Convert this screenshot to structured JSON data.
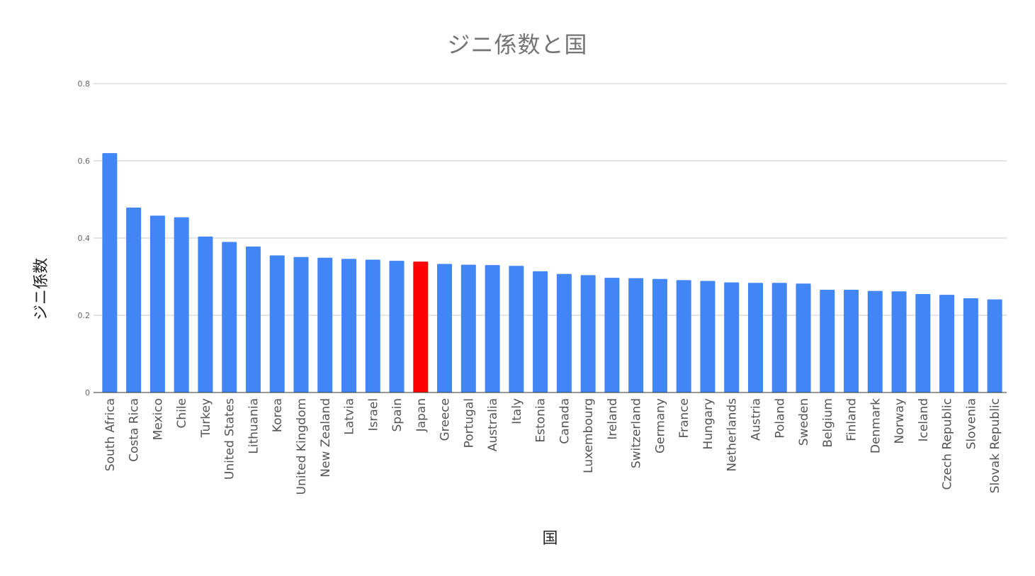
{
  "chart_data": {
    "type": "bar",
    "title": "ジニ係数と国",
    "xlabel": "国",
    "ylabel": "ジニ係数",
    "ylim": [
      0,
      0.8
    ],
    "y_ticks": [
      0,
      0.2,
      0.4,
      0.6,
      0.8
    ],
    "y_tick_labels": [
      "0",
      "0.2",
      "0.4",
      "0.6",
      "0.8"
    ],
    "grid": true,
    "legend": "none",
    "bar_color": "#4285f4",
    "highlight_color": "#ff0000",
    "highlight_category": "Japan",
    "categories": [
      "South Africa",
      "Costa Rica",
      "Mexico",
      "Chile",
      "Turkey",
      "United States",
      "Lithuania",
      "Korea",
      "United Kingdom",
      "New Zealand",
      "Latvia",
      "Israel",
      "Spain",
      "Japan",
      "Greece",
      "Portugal",
      "Australia",
      "Italy",
      "Estonia",
      "Canada",
      "Luxembourg",
      "Ireland",
      "Switzerland",
      "Germany",
      "France",
      "Hungary",
      "Netherlands",
      "Austria",
      "Poland",
      "Sweden",
      "Belgium",
      "Finland",
      "Denmark",
      "Norway",
      "Iceland",
      "Czech Republic",
      "Slovenia",
      "Slovak Republic"
    ],
    "values": [
      0.62,
      0.479,
      0.458,
      0.454,
      0.404,
      0.39,
      0.378,
      0.355,
      0.351,
      0.349,
      0.346,
      0.344,
      0.341,
      0.339,
      0.333,
      0.331,
      0.33,
      0.328,
      0.314,
      0.307,
      0.304,
      0.297,
      0.296,
      0.294,
      0.291,
      0.289,
      0.285,
      0.284,
      0.284,
      0.282,
      0.266,
      0.266,
      0.263,
      0.262,
      0.255,
      0.253,
      0.244,
      0.241
    ]
  }
}
